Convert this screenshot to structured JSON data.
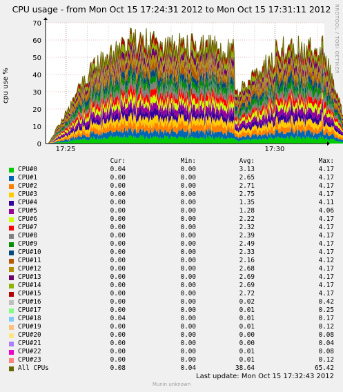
{
  "title": "CPU usage - from Mon Oct 15 17:24:31 2012 to Mon Oct 15 17:31:11 2012",
  "side_credit": "RRDTOOL / TOBI OETIKER",
  "footer": {
    "last_update": "Last update:  Mon Oct 15 17:32:43 2012",
    "munin": "Munin unknown"
  },
  "legend_headers": {
    "cur": "Cur:",
    "min": "Min:",
    "avg": "Avg:",
    "max": "Max:"
  },
  "legend": [
    {
      "name": "CPU#0",
      "color": "#00cc00",
      "cur": "0.04",
      "min": "0.00",
      "avg": "3.13",
      "max": "4.17"
    },
    {
      "name": "CPU#1",
      "color": "#0066b3",
      "cur": "0.00",
      "min": "0.00",
      "avg": "2.65",
      "max": "4.17"
    },
    {
      "name": "CPU#2",
      "color": "#ff8000",
      "cur": "0.00",
      "min": "0.00",
      "avg": "2.71",
      "max": "4.17"
    },
    {
      "name": "CPU#3",
      "color": "#ffcc00",
      "cur": "0.00",
      "min": "0.00",
      "avg": "2.75",
      "max": "4.17"
    },
    {
      "name": "CPU#4",
      "color": "#330099",
      "cur": "0.00",
      "min": "0.00",
      "avg": "1.35",
      "max": "4.11"
    },
    {
      "name": "CPU#5",
      "color": "#990099",
      "cur": "0.00",
      "min": "0.00",
      "avg": "1.28",
      "max": "4.06"
    },
    {
      "name": "CPU#6",
      "color": "#ccff00",
      "cur": "0.00",
      "min": "0.00",
      "avg": "2.22",
      "max": "4.17"
    },
    {
      "name": "CPU#7",
      "color": "#ff0000",
      "cur": "0.00",
      "min": "0.00",
      "avg": "2.32",
      "max": "4.17"
    },
    {
      "name": "CPU#8",
      "color": "#808080",
      "cur": "0.00",
      "min": "0.00",
      "avg": "2.39",
      "max": "4.17"
    },
    {
      "name": "CPU#9",
      "color": "#008f00",
      "cur": "0.00",
      "min": "0.00",
      "avg": "2.49",
      "max": "4.17"
    },
    {
      "name": "CPU#10",
      "color": "#00487d",
      "cur": "0.00",
      "min": "0.00",
      "avg": "2.33",
      "max": "4.17"
    },
    {
      "name": "CPU#11",
      "color": "#b35a00",
      "cur": "0.00",
      "min": "0.00",
      "avg": "2.16",
      "max": "4.12"
    },
    {
      "name": "CPU#12",
      "color": "#b38f00",
      "cur": "0.00",
      "min": "0.00",
      "avg": "2.68",
      "max": "4.17"
    },
    {
      "name": "CPU#13",
      "color": "#6b006b",
      "cur": "0.00",
      "min": "0.00",
      "avg": "2.69",
      "max": "4.17"
    },
    {
      "name": "CPU#14",
      "color": "#8fb300",
      "cur": "0.00",
      "min": "0.00",
      "avg": "2.69",
      "max": "4.17"
    },
    {
      "name": "CPU#15",
      "color": "#b30000",
      "cur": "0.00",
      "min": "0.00",
      "avg": "2.72",
      "max": "4.17"
    },
    {
      "name": "CPU#16",
      "color": "#bebebe",
      "cur": "0.00",
      "min": "0.00",
      "avg": "0.02",
      "max": "0.42"
    },
    {
      "name": "CPU#17",
      "color": "#80ff80",
      "cur": "0.00",
      "min": "0.00",
      "avg": "0.01",
      "max": "0.25"
    },
    {
      "name": "CPU#18",
      "color": "#80c9ff",
      "cur": "0.04",
      "min": "0.00",
      "avg": "0.01",
      "max": "0.17"
    },
    {
      "name": "CPU#19",
      "color": "#ffc080",
      "cur": "0.00",
      "min": "0.00",
      "avg": "0.01",
      "max": "0.12"
    },
    {
      "name": "CPU#20",
      "color": "#ffe680",
      "cur": "0.00",
      "min": "0.00",
      "avg": "0.00",
      "max": "0.08"
    },
    {
      "name": "CPU#21",
      "color": "#aa80ff",
      "cur": "0.00",
      "min": "0.00",
      "avg": "0.00",
      "max": "0.04"
    },
    {
      "name": "CPU#22",
      "color": "#ee00cc",
      "cur": "0.00",
      "min": "0.00",
      "avg": "0.01",
      "max": "0.08"
    },
    {
      "name": "CPU#23",
      "color": "#ff8080",
      "cur": "0.00",
      "min": "0.00",
      "avg": "0.01",
      "max": "0.12"
    },
    {
      "name": "All CPUs",
      "color": "#666600",
      "cur": "0.08",
      "min": "0.04",
      "avg": "38.64",
      "max": "65.42"
    }
  ],
  "chart_data": {
    "type": "area",
    "ylabel": "cpu use %",
    "ylim": [
      0,
      70
    ],
    "yticks": [
      "0",
      "10",
      "20",
      "30",
      "40",
      "50",
      "60",
      "70"
    ],
    "xticks": [
      "17:25",
      "17:30"
    ],
    "grid": true,
    "stacked": true,
    "series_order": [
      "CPU#0",
      "CPU#1",
      "CPU#2",
      "CPU#3",
      "CPU#4",
      "CPU#5",
      "CPU#6",
      "CPU#7",
      "CPU#8",
      "CPU#9",
      "CPU#10",
      "CPU#11",
      "CPU#12",
      "CPU#13",
      "CPU#14",
      "CPU#15"
    ],
    "series_colors": [
      "#00cc00",
      "#0066b3",
      "#ff8000",
      "#ffcc00",
      "#330099",
      "#990099",
      "#ccff00",
      "#ff0000",
      "#808080",
      "#008f00",
      "#00487d",
      "#b35a00",
      "#b38f00",
      "#6b006b",
      "#8fb300",
      "#b30000"
    ],
    "total_envelope": {
      "x_min": [
        0.07,
        1.08,
        1.83,
        2.06,
        4.51,
        4.53,
        4.58,
        5.48,
        5.52,
        6.59,
        6.62,
        7.32
      ],
      "total": [
        0,
        45,
        58,
        62,
        56,
        35,
        30,
        52,
        58,
        56,
        58,
        0
      ]
    }
  }
}
